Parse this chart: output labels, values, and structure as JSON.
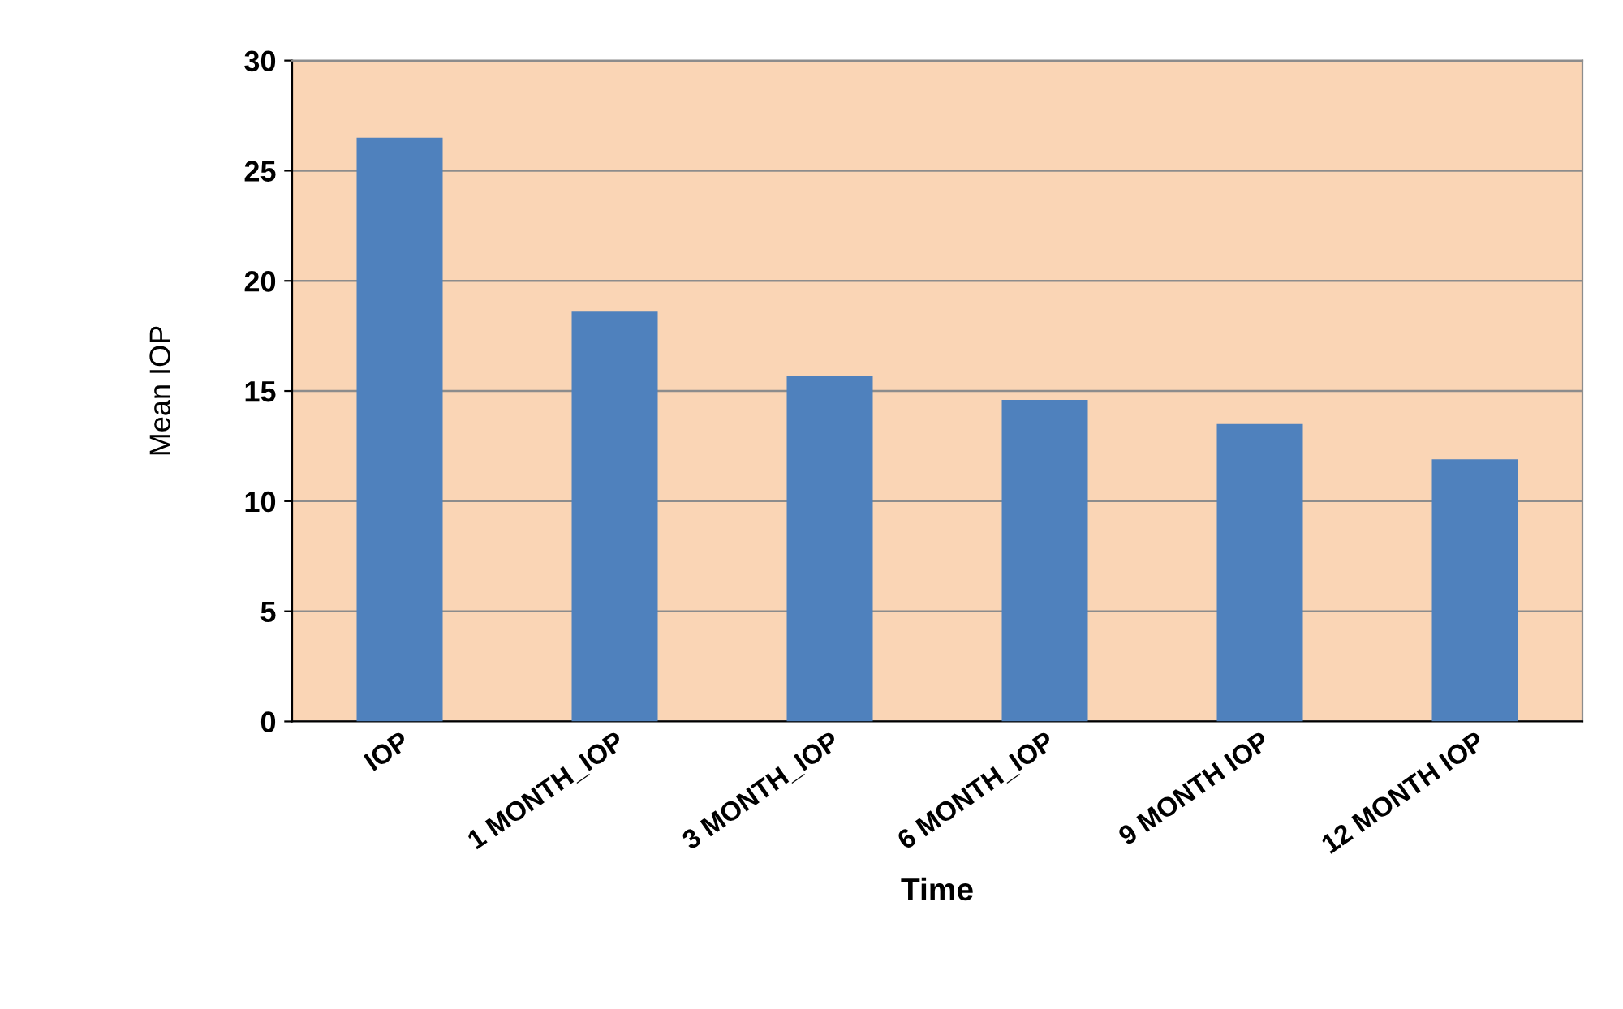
{
  "chart_data": {
    "type": "bar",
    "xlabel": "Time",
    "ylabel": "Mean IOP",
    "categories": [
      "IOP",
      "1 MONTH_IOP",
      "3 MONTH_IOP",
      "6 MONTH_IOP",
      "9 MONTH IOP",
      "12 MONTH IOP"
    ],
    "values": [
      26.5,
      18.6,
      15.7,
      14.6,
      13.5,
      11.9
    ],
    "color": "#4f81bd",
    "ylim": [
      0,
      30
    ],
    "yticks": [
      0,
      5,
      10,
      15,
      20,
      25,
      30
    ],
    "grid": "y"
  }
}
